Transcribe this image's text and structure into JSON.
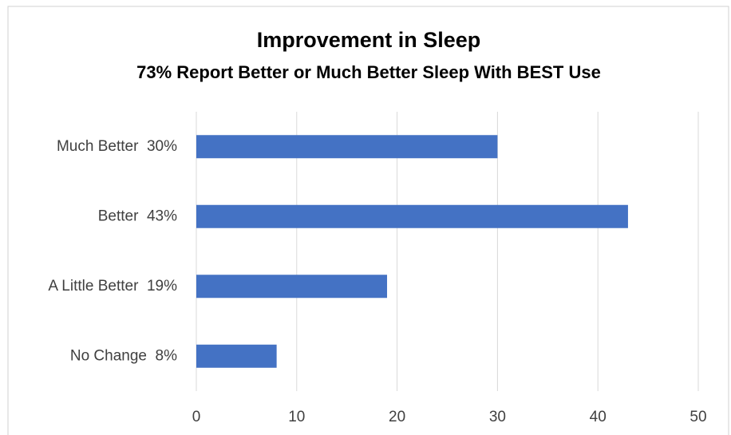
{
  "chart_data": {
    "type": "barh",
    "title": "Improvement in Sleep",
    "subtitle": "73% Report Better or Much Better Sleep With BEST Use",
    "categories": [
      "Much Better  30%",
      "Better  43%",
      "A Little Better  19%",
      "No Change  8%"
    ],
    "values": [
      30,
      43,
      19,
      8
    ],
    "color": "#4472c4",
    "xlim": [
      0,
      50
    ],
    "xticks": [
      0,
      10,
      20,
      30,
      40,
      50
    ],
    "grid": true
  }
}
